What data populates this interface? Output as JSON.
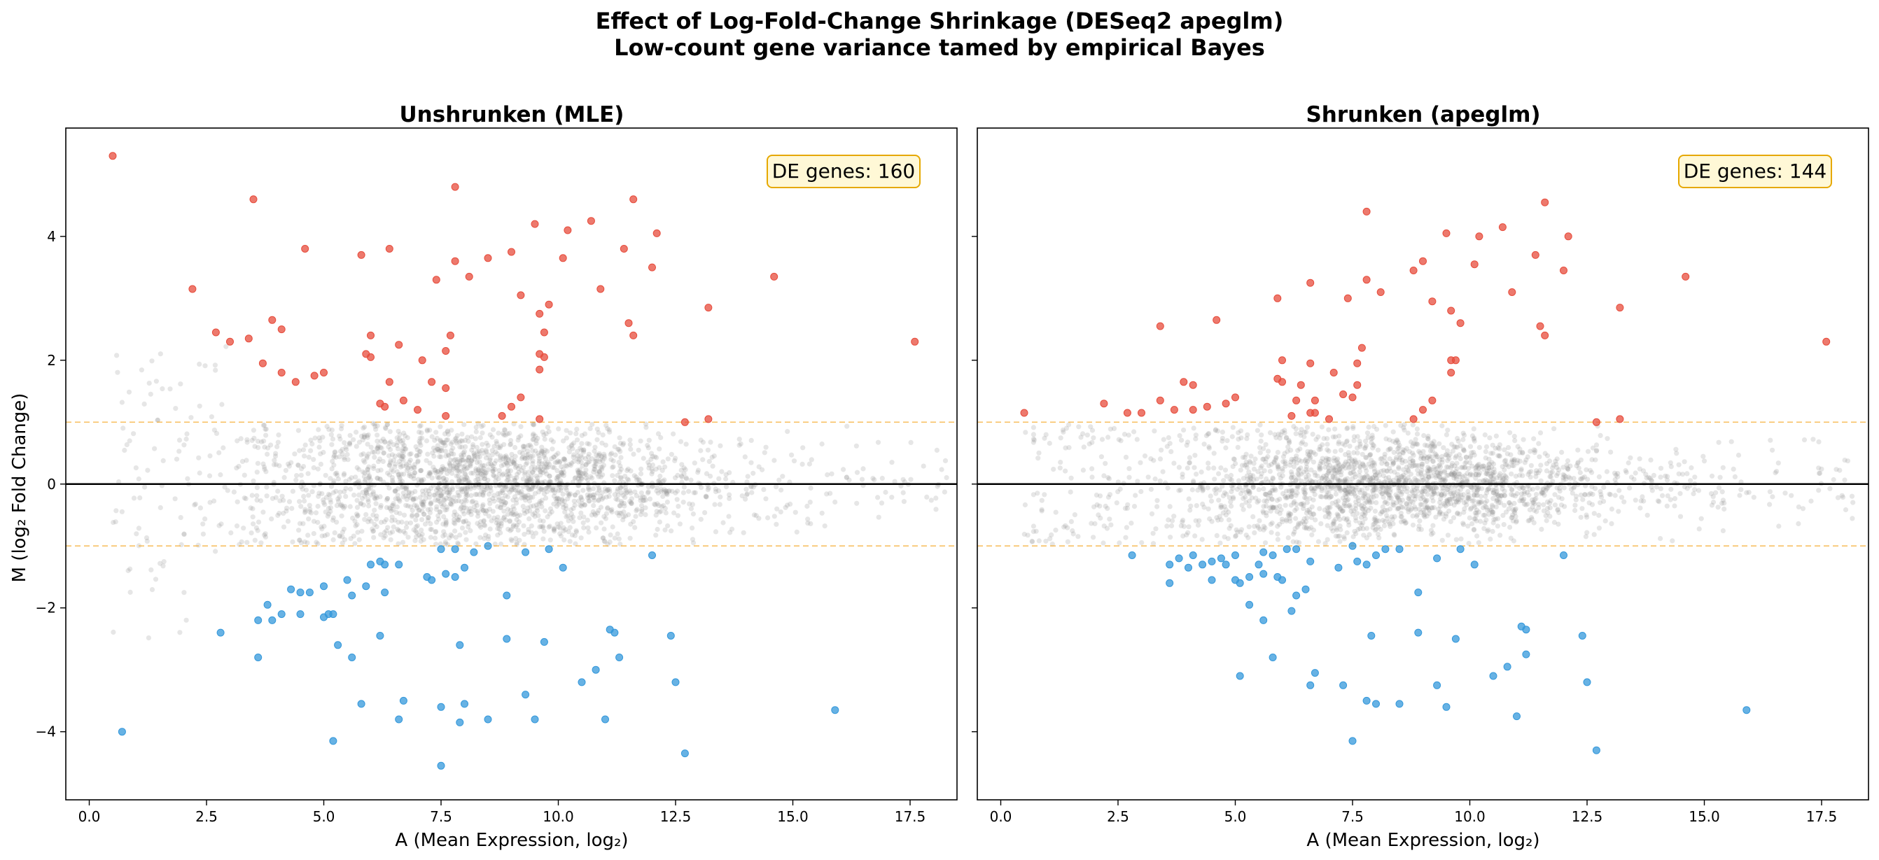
{
  "colors": {
    "up": "#e74c3c",
    "down": "#3498db",
    "ns": "#8c8c8c",
    "threshold": "#f5a623",
    "badge_bg": "#fff8d6",
    "badge_border": "#e6a800"
  },
  "figure": {
    "title_line1": "Effect of Log-Fold-Change Shrinkage (DESeq2 apeglm)",
    "title_line2": "Low-count gene variance tamed by empirical Bayes"
  },
  "chart_data": [
    {
      "type": "scatter",
      "title": "Unshrunken (MLE)",
      "xlabel": "A (Mean Expression, log₂)",
      "ylabel": "M (log₂ Fold Change)",
      "xlim": [
        -0.5,
        18.5
      ],
      "ylim": [
        -5.1,
        5.75
      ],
      "xticks": [
        0,
        2.5,
        5,
        7.5,
        10,
        12.5,
        15,
        17.5
      ],
      "xtick_labels": [
        "0.0",
        "2.5",
        "5.0",
        "7.5",
        "10.0",
        "12.5",
        "15.0",
        "17.5"
      ],
      "yticks": [
        4,
        2,
        0,
        -2,
        -4
      ],
      "ytick_labels": [
        "4",
        "2",
        "0",
        "−2",
        "−4"
      ],
      "thresholds": [
        1,
        -1
      ],
      "annotation": "DE genes: 160",
      "background_seed": 17,
      "background_count": 2300,
      "series": [
        {
          "name": "Up-regulated",
          "color": "#e74c3c",
          "points": [
            [
              0.5,
              5.3
            ],
            [
              3.5,
              4.6
            ],
            [
              7.8,
              4.8
            ],
            [
              11.6,
              4.6
            ],
            [
              10.7,
              4.25
            ],
            [
              9.5,
              4.2
            ],
            [
              10.2,
              4.1
            ],
            [
              12.1,
              4.05
            ],
            [
              4.6,
              3.8
            ],
            [
              6.4,
              3.8
            ],
            [
              8.5,
              3.65
            ],
            [
              9.0,
              3.75
            ],
            [
              11.4,
              3.8
            ],
            [
              5.8,
              3.7
            ],
            [
              10.1,
              3.65
            ],
            [
              7.8,
              3.6
            ],
            [
              12.0,
              3.5
            ],
            [
              8.1,
              3.35
            ],
            [
              7.4,
              3.3
            ],
            [
              14.6,
              3.35
            ],
            [
              2.2,
              3.15
            ],
            [
              10.9,
              3.15
            ],
            [
              9.2,
              3.05
            ],
            [
              13.2,
              2.85
            ],
            [
              9.8,
              2.9
            ],
            [
              9.6,
              2.75
            ],
            [
              3.9,
              2.65
            ],
            [
              4.1,
              2.5
            ],
            [
              11.5,
              2.6
            ],
            [
              2.7,
              2.45
            ],
            [
              7.7,
              2.4
            ],
            [
              6.0,
              2.4
            ],
            [
              9.7,
              2.45
            ],
            [
              11.6,
              2.4
            ],
            [
              3.4,
              2.35
            ],
            [
              3.0,
              2.3
            ],
            [
              17.6,
              2.3
            ],
            [
              6.6,
              2.25
            ],
            [
              7.6,
              2.15
            ],
            [
              5.9,
              2.1
            ],
            [
              6.0,
              2.05
            ],
            [
              7.1,
              2.0
            ],
            [
              9.6,
              2.1
            ],
            [
              9.7,
              2.05
            ],
            [
              3.7,
              1.95
            ],
            [
              4.1,
              1.8
            ],
            [
              4.8,
              1.75
            ],
            [
              5.0,
              1.8
            ],
            [
              4.4,
              1.65
            ],
            [
              6.4,
              1.65
            ],
            [
              9.6,
              1.85
            ],
            [
              7.3,
              1.65
            ],
            [
              7.6,
              1.55
            ],
            [
              6.2,
              1.3
            ],
            [
              6.7,
              1.35
            ],
            [
              7.0,
              1.2
            ],
            [
              7.6,
              1.1
            ],
            [
              6.3,
              1.25
            ],
            [
              9.2,
              1.4
            ],
            [
              9.0,
              1.25
            ],
            [
              8.8,
              1.1
            ],
            [
              9.6,
              1.05
            ],
            [
              12.7,
              1.0
            ],
            [
              13.2,
              1.05
            ]
          ]
        },
        {
          "name": "Down-regulated",
          "color": "#3498db",
          "points": [
            [
              0.7,
              -4.0
            ],
            [
              5.2,
              -4.15
            ],
            [
              7.5,
              -4.55
            ],
            [
              12.7,
              -4.35
            ],
            [
              6.6,
              -3.8
            ],
            [
              7.9,
              -3.85
            ],
            [
              8.5,
              -3.8
            ],
            [
              9.5,
              -3.8
            ],
            [
              11.0,
              -3.8
            ],
            [
              7.5,
              -3.6
            ],
            [
              8.0,
              -3.55
            ],
            [
              6.7,
              -3.5
            ],
            [
              5.8,
              -3.55
            ],
            [
              15.9,
              -3.65
            ],
            [
              9.3,
              -3.4
            ],
            [
              10.5,
              -3.2
            ],
            [
              10.8,
              -3.0
            ],
            [
              12.5,
              -3.2
            ],
            [
              11.3,
              -2.8
            ],
            [
              5.6,
              -2.8
            ],
            [
              3.6,
              -2.8
            ],
            [
              7.9,
              -2.6
            ],
            [
              5.3,
              -2.6
            ],
            [
              6.2,
              -2.45
            ],
            [
              8.9,
              -2.5
            ],
            [
              9.7,
              -2.55
            ],
            [
              12.4,
              -2.45
            ],
            [
              11.1,
              -2.35
            ],
            [
              11.2,
              -2.4
            ],
            [
              2.8,
              -2.4
            ],
            [
              3.6,
              -2.2
            ],
            [
              3.9,
              -2.2
            ],
            [
              4.1,
              -2.1
            ],
            [
              4.5,
              -2.1
            ],
            [
              5.1,
              -2.1
            ],
            [
              5.0,
              -2.15
            ],
            [
              5.2,
              -2.1
            ],
            [
              3.8,
              -1.95
            ],
            [
              4.5,
              -1.75
            ],
            [
              4.7,
              -1.75
            ],
            [
              4.3,
              -1.7
            ],
            [
              5.0,
              -1.65
            ],
            [
              5.6,
              -1.8
            ],
            [
              5.5,
              -1.55
            ],
            [
              5.9,
              -1.65
            ],
            [
              6.3,
              -1.75
            ],
            [
              6.0,
              -1.3
            ],
            [
              6.2,
              -1.25
            ],
            [
              6.3,
              -1.3
            ],
            [
              6.6,
              -1.3
            ],
            [
              7.2,
              -1.5
            ],
            [
              7.3,
              -1.55
            ],
            [
              7.6,
              -1.45
            ],
            [
              7.8,
              -1.5
            ],
            [
              8.0,
              -1.35
            ],
            [
              8.9,
              -1.8
            ],
            [
              7.5,
              -1.05
            ],
            [
              7.8,
              -1.05
            ],
            [
              8.2,
              -1.1
            ],
            [
              8.5,
              -1.0
            ],
            [
              9.3,
              -1.1
            ],
            [
              10.1,
              -1.35
            ],
            [
              9.8,
              -1.05
            ],
            [
              12.0,
              -1.15
            ]
          ]
        }
      ]
    },
    {
      "type": "scatter",
      "title": "Shrunken (apeglm)",
      "xlabel": "A (Mean Expression, log₂)",
      "ylabel": "",
      "xlim": [
        -0.5,
        18.5
      ],
      "ylim": [
        -5.1,
        5.75
      ],
      "xticks": [
        0,
        2.5,
        5,
        7.5,
        10,
        12.5,
        15,
        17.5
      ],
      "xtick_labels": [
        "0.0",
        "2.5",
        "5.0",
        "7.5",
        "10.0",
        "12.5",
        "15.0",
        "17.5"
      ],
      "yticks": [
        4,
        2,
        0,
        -2,
        -4
      ],
      "ytick_labels": [
        "",
        "",
        "",
        "",
        ""
      ],
      "thresholds": [
        1,
        -1
      ],
      "annotation": "DE genes: 144",
      "background_seed": 29,
      "background_count": 2300,
      "series": [
        {
          "name": "Up-regulated",
          "color": "#e74c3c",
          "points": [
            [
              7.8,
              4.4
            ],
            [
              11.6,
              4.55
            ],
            [
              10.7,
              4.15
            ],
            [
              9.5,
              4.05
            ],
            [
              10.2,
              4.0
            ],
            [
              12.1,
              4.0
            ],
            [
              11.4,
              3.7
            ],
            [
              10.1,
              3.55
            ],
            [
              8.8,
              3.45
            ],
            [
              9.0,
              3.6
            ],
            [
              12.0,
              3.45
            ],
            [
              14.6,
              3.35
            ],
            [
              8.1,
              3.1
            ],
            [
              7.8,
              3.3
            ],
            [
              6.6,
              3.25
            ],
            [
              7.4,
              3.0
            ],
            [
              5.9,
              3.0
            ],
            [
              10.9,
              3.1
            ],
            [
              9.2,
              2.95
            ],
            [
              13.2,
              2.85
            ],
            [
              9.6,
              2.8
            ],
            [
              9.8,
              2.6
            ],
            [
              4.6,
              2.65
            ],
            [
              3.4,
              2.55
            ],
            [
              11.5,
              2.55
            ],
            [
              11.6,
              2.4
            ],
            [
              17.6,
              2.3
            ],
            [
              7.7,
              2.2
            ],
            [
              9.6,
              2.0
            ],
            [
              9.7,
              2.0
            ],
            [
              6.0,
              2.0
            ],
            [
              6.6,
              1.95
            ],
            [
              7.6,
              1.95
            ],
            [
              5.9,
              1.7
            ],
            [
              6.0,
              1.65
            ],
            [
              7.1,
              1.8
            ],
            [
              7.6,
              1.6
            ],
            [
              9.6,
              1.8
            ],
            [
              3.9,
              1.65
            ],
            [
              4.1,
              1.6
            ],
            [
              6.4,
              1.6
            ],
            [
              7.3,
              1.45
            ],
            [
              7.5,
              1.4
            ],
            [
              6.3,
              1.35
            ],
            [
              6.7,
              1.35
            ],
            [
              2.2,
              1.3
            ],
            [
              3.4,
              1.35
            ],
            [
              4.8,
              1.3
            ],
            [
              5.0,
              1.4
            ],
            [
              4.4,
              1.25
            ],
            [
              3.7,
              1.2
            ],
            [
              4.1,
              1.2
            ],
            [
              2.7,
              1.15
            ],
            [
              3.0,
              1.15
            ],
            [
              0.5,
              1.15
            ],
            [
              6.2,
              1.1
            ],
            [
              6.6,
              1.15
            ],
            [
              6.7,
              1.15
            ],
            [
              7.0,
              1.05
            ],
            [
              9.2,
              1.35
            ],
            [
              9.0,
              1.2
            ],
            [
              8.8,
              1.05
            ],
            [
              12.7,
              1.0
            ],
            [
              13.2,
              1.05
            ]
          ]
        },
        {
          "name": "Down-regulated",
          "color": "#3498db",
          "points": [
            [
              7.5,
              -4.15
            ],
            [
              12.7,
              -4.3
            ],
            [
              9.5,
              -3.6
            ],
            [
              11.0,
              -3.75
            ],
            [
              15.9,
              -3.65
            ],
            [
              8.5,
              -3.55
            ],
            [
              7.8,
              -3.5
            ],
            [
              8.0,
              -3.55
            ],
            [
              9.3,
              -3.25
            ],
            [
              7.3,
              -3.25
            ],
            [
              6.6,
              -3.25
            ],
            [
              6.7,
              -3.05
            ],
            [
              5.1,
              -3.1
            ],
            [
              10.5,
              -3.1
            ],
            [
              10.8,
              -2.95
            ],
            [
              12.5,
              -3.2
            ],
            [
              11.2,
              -2.75
            ],
            [
              5.8,
              -2.8
            ],
            [
              9.7,
              -2.5
            ],
            [
              12.4,
              -2.45
            ],
            [
              11.1,
              -2.3
            ],
            [
              11.2,
              -2.35
            ],
            [
              7.9,
              -2.45
            ],
            [
              8.9,
              -2.4
            ],
            [
              5.6,
              -2.2
            ],
            [
              5.3,
              -1.95
            ],
            [
              6.2,
              -2.05
            ],
            [
              6.5,
              -1.7
            ],
            [
              6.3,
              -1.8
            ],
            [
              3.6,
              -1.6
            ],
            [
              4.5,
              -1.55
            ],
            [
              5.0,
              -1.55
            ],
            [
              5.1,
              -1.6
            ],
            [
              5.3,
              -1.5
            ],
            [
              5.6,
              -1.45
            ],
            [
              5.9,
              -1.5
            ],
            [
              6.0,
              -1.55
            ],
            [
              8.9,
              -1.75
            ],
            [
              2.8,
              -1.15
            ],
            [
              3.6,
              -1.3
            ],
            [
              3.8,
              -1.2
            ],
            [
              4.0,
              -1.35
            ],
            [
              4.3,
              -1.3
            ],
            [
              4.1,
              -1.15
            ],
            [
              4.5,
              -1.25
            ],
            [
              4.8,
              -1.3
            ],
            [
              4.7,
              -1.2
            ],
            [
              5.0,
              -1.15
            ],
            [
              5.5,
              -1.3
            ],
            [
              5.6,
              -1.1
            ],
            [
              5.8,
              -1.15
            ],
            [
              6.1,
              -1.05
            ],
            [
              6.3,
              -1.05
            ],
            [
              6.6,
              -1.25
            ],
            [
              7.2,
              -1.35
            ],
            [
              7.5,
              -1.0
            ],
            [
              7.6,
              -1.25
            ],
            [
              7.8,
              -1.3
            ],
            [
              8.0,
              -1.15
            ],
            [
              8.2,
              -1.05
            ],
            [
              8.5,
              -1.05
            ],
            [
              9.3,
              -1.2
            ],
            [
              9.8,
              -1.05
            ],
            [
              10.1,
              -1.3
            ],
            [
              12.0,
              -1.15
            ]
          ]
        }
      ]
    }
  ]
}
